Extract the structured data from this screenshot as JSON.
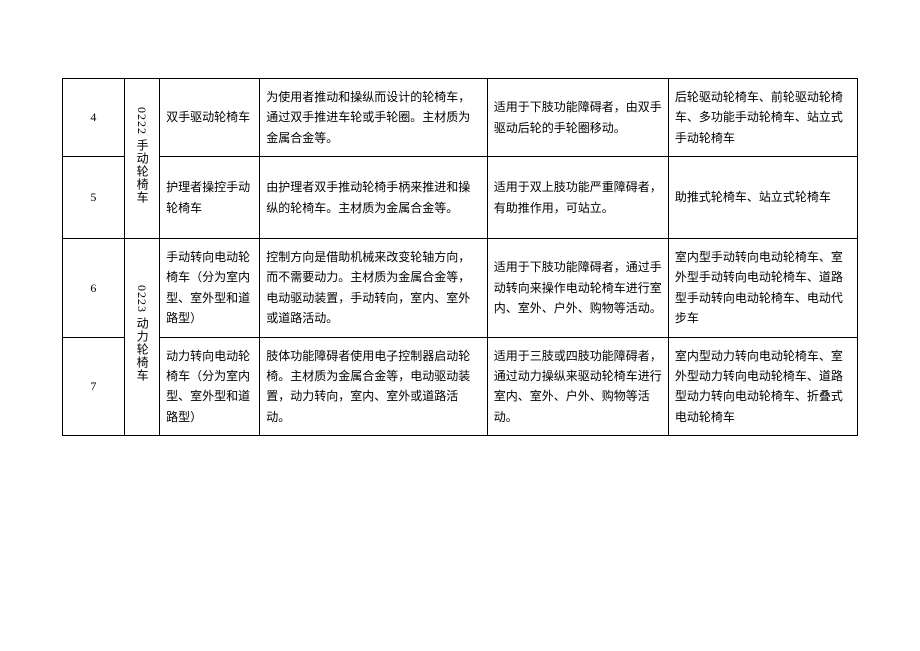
{
  "groups": [
    {
      "code": "0222 手动轮椅车",
      "rows": [
        {
          "idx": "4",
          "name": "双手驱动轮椅车",
          "desc": "为使用者推动和操纵而设计的轮椅车，通过双手推进车轮或手轮圈。主材质为金属合金等。",
          "app": "适用于下肢功能障碍者，由双手驱动后轮的手轮圈移动。",
          "ex": "后轮驱动轮椅车、前轮驱动轮椅车、多功能手动轮椅车、站立式手动轮椅车"
        },
        {
          "idx": "5",
          "name": "护理者操控手动轮椅车",
          "desc": "由护理者双手推动轮椅手柄来推进和操纵的轮椅车。主材质为金属合金等。",
          "app": "适用于双上肢功能严重障碍者，有助推作用，可站立。",
          "ex": "助推式轮椅车、站立式轮椅车"
        }
      ]
    },
    {
      "code": "0223 动力轮椅车",
      "rows": [
        {
          "idx": "6",
          "name": "手动转向电动轮椅车（分为室内型、室外型和道路型）",
          "desc": "控制方向是借助机械来改变轮轴方向，而不需要动力。主材质为金属合金等，电动驱动装置，手动转向，室内、室外或道路活动。",
          "app": "适用于下肢功能障碍者，通过手动转向来操作电动轮椅车进行室内、室外、户外、购物等活动。",
          "ex": "室内型手动转向电动轮椅车、室外型手动转向电动轮椅车、道路型手动转向电动轮椅车、电动代步车"
        },
        {
          "idx": "7",
          "name": "动力转向电动轮椅车（分为室内型、室外型和道路型）",
          "desc": "肢体功能障碍者使用电子控制器启动轮椅。主材质为金属合金等，电动驱动装置，动力转向，室内、室外或道路活动。",
          "app": "适用于三肢或四肢功能障碍者，通过动力操纵来驱动轮椅车进行室内、室外、户外、购物等活动。",
          "ex": "室内型动力转向电动轮椅车、室外型动力转向电动轮椅车、道路型动力转向电动轮椅车、折叠式电动轮椅车"
        }
      ]
    }
  ]
}
